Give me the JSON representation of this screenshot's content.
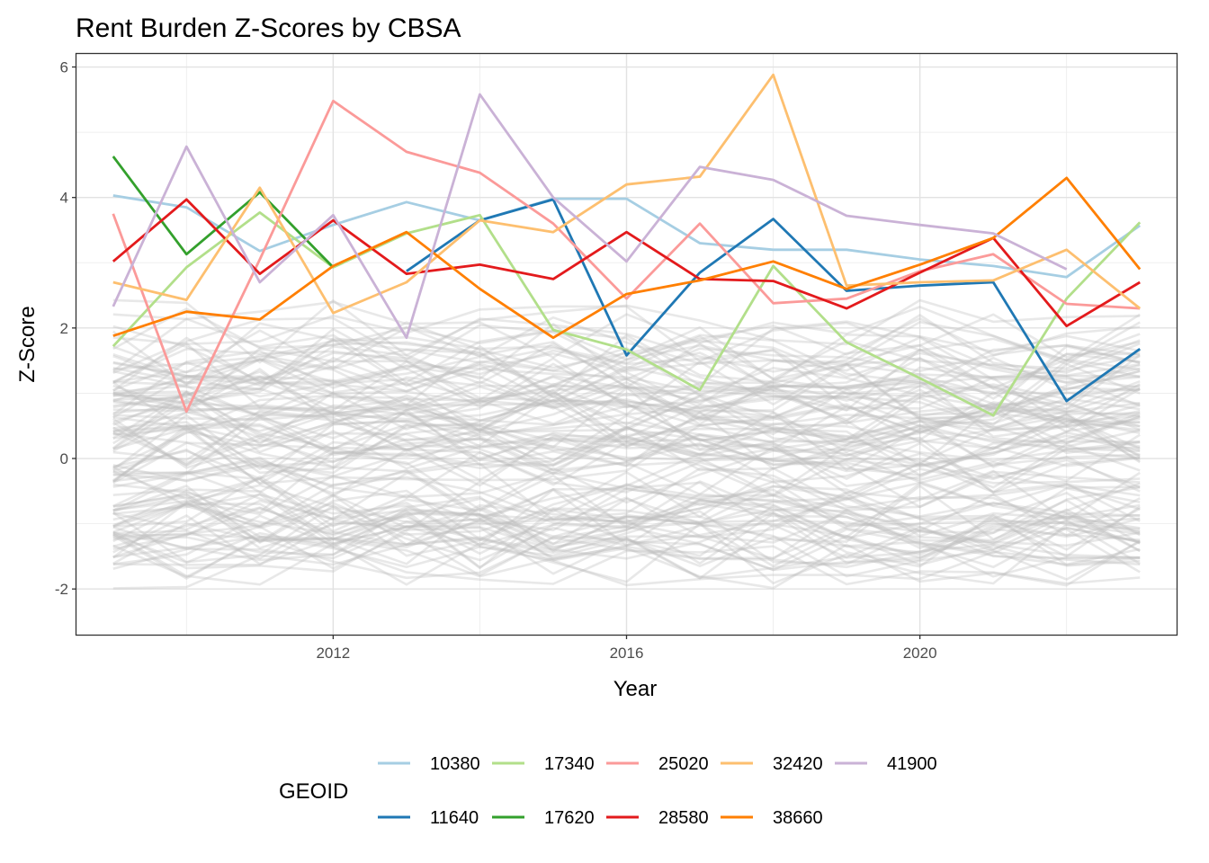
{
  "chart_data": {
    "type": "line",
    "title": "Rent Burden Z-Scores by CBSA",
    "xlabel": "Year",
    "ylabel": "Z-Score",
    "xlim": [
      2008.5,
      2023.5
    ],
    "ylim": [
      -2.7,
      6.2
    ],
    "x_ticks": [
      2012,
      2016,
      2020
    ],
    "y_ticks": [
      -2,
      0,
      2,
      4,
      6
    ],
    "grid": true,
    "background_series_color": "#bebebe",
    "background_series_count": 120,
    "legend": {
      "title": "GEOID",
      "position": "bottom",
      "rows": 2
    },
    "series": [
      {
        "name": "10380",
        "color": "#a6cee3",
        "x": [
          2009,
          2010,
          2011,
          2012,
          2013,
          2014,
          2015,
          2016,
          2017,
          2018,
          2019,
          2020,
          2021,
          2022,
          2023
        ],
        "values": [
          4.03,
          3.85,
          3.18,
          3.58,
          3.93,
          3.65,
          3.98,
          3.98,
          3.3,
          3.2,
          3.2,
          3.05,
          2.95,
          2.78,
          3.57
        ]
      },
      {
        "name": "11640",
        "color": "#1f78b4",
        "x": [
          2013,
          2014,
          2015,
          2016,
          2017,
          2018,
          2019,
          2020,
          2021,
          2022,
          2023
        ],
        "values": [
          2.87,
          3.65,
          3.97,
          1.58,
          2.85,
          3.67,
          2.57,
          2.65,
          2.7,
          0.88,
          1.68
        ]
      },
      {
        "name": "17340",
        "color": "#b2df8a",
        "x": [
          2009,
          2010,
          2011,
          2012,
          2013,
          2014,
          2015,
          2016,
          2017,
          2018,
          2019,
          2020,
          2021,
          2022,
          2023
        ],
        "values": [
          1.72,
          2.93,
          3.77,
          2.93,
          3.45,
          3.73,
          1.97,
          1.67,
          1.05,
          2.95,
          1.78,
          1.23,
          0.66,
          2.45,
          3.62
        ]
      },
      {
        "name": "17620",
        "color": "#33a02c",
        "x": [
          2009,
          2010,
          2011,
          2012
        ],
        "values": [
          4.63,
          3.13,
          4.08,
          2.93
        ]
      },
      {
        "name": "25020",
        "color": "#fb9a99",
        "x": [
          2009,
          2010,
          2011,
          2012,
          2013,
          2014,
          2015,
          2016,
          2017,
          2018,
          2019,
          2020,
          2021,
          2022,
          2023
        ],
        "values": [
          3.75,
          0.72,
          3.05,
          5.48,
          4.7,
          4.38,
          3.6,
          2.45,
          3.6,
          2.38,
          2.45,
          2.87,
          3.13,
          2.37,
          2.3
        ]
      },
      {
        "name": "28580",
        "color": "#e31a1c",
        "x": [
          2009,
          2010,
          2011,
          2012,
          2013,
          2014,
          2015,
          2016,
          2017,
          2018,
          2019,
          2020,
          2021,
          2022,
          2023
        ],
        "values": [
          3.02,
          3.97,
          2.83,
          3.65,
          2.83,
          2.97,
          2.75,
          3.47,
          2.75,
          2.72,
          2.3,
          2.85,
          3.38,
          2.03,
          2.7
        ]
      },
      {
        "name": "32420",
        "color": "#fdbf6f",
        "x": [
          2009,
          2010,
          2011,
          2012,
          2013,
          2014,
          2015,
          2016,
          2017,
          2018,
          2019,
          2020,
          2021,
          2022,
          2023
        ],
        "values": [
          2.7,
          2.43,
          4.15,
          2.23,
          2.7,
          3.65,
          3.47,
          4.2,
          4.32,
          5.88,
          2.65,
          2.7,
          2.73,
          3.2,
          2.3
        ]
      },
      {
        "name": "38660",
        "color": "#ff7f00",
        "x": [
          2009,
          2010,
          2011,
          2012,
          2013,
          2014,
          2015,
          2016,
          2017,
          2018,
          2019,
          2020,
          2021,
          2022,
          2023
        ],
        "values": [
          1.88,
          2.25,
          2.13,
          2.95,
          3.47,
          2.6,
          1.85,
          2.52,
          2.73,
          3.02,
          2.6,
          2.97,
          3.38,
          4.3,
          2.9
        ]
      },
      {
        "name": "41900",
        "color": "#cab2d6",
        "x": [
          2009,
          2010,
          2011,
          2012,
          2013,
          2014,
          2015,
          2016,
          2017,
          2018,
          2019,
          2020,
          2021,
          2022
        ],
        "values": [
          2.33,
          4.78,
          2.7,
          3.73,
          1.85,
          5.58,
          4.0,
          3.02,
          4.47,
          4.27,
          3.72,
          3.58,
          3.45,
          2.9
        ]
      }
    ]
  }
}
